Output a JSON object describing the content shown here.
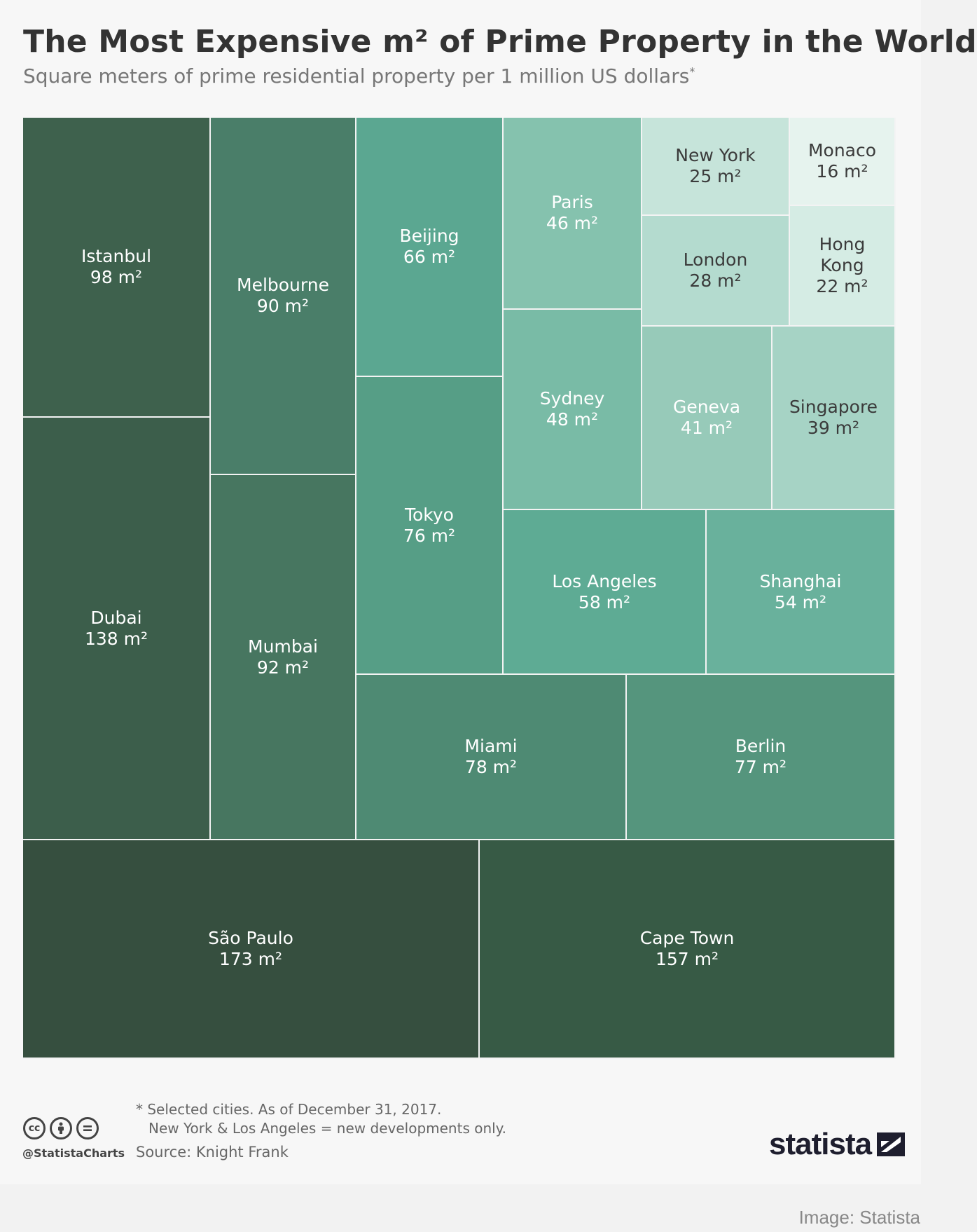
{
  "title": "The Most Expensive m² of Prime Property in the World",
  "subtitle": "Square meters of prime residential property per 1 million US dollars",
  "subtitle_marker": "*",
  "chart_data": {
    "type": "treemap",
    "unit": "m²",
    "items": [
      {
        "name": "São Paulo",
        "value": 173,
        "label": "173 m²",
        "color": "#364f3f",
        "text": "#ffffff"
      },
      {
        "name": "Cape Town",
        "value": 157,
        "label": "157 m²",
        "color": "#375a45",
        "text": "#ffffff"
      },
      {
        "name": "Dubai",
        "value": 138,
        "label": "138 m²",
        "color": "#3c5e4b",
        "text": "#ffffff"
      },
      {
        "name": "Istanbul",
        "value": 98,
        "label": "98 m²",
        "color": "#3e614d",
        "text": "#ffffff"
      },
      {
        "name": "Mumbai",
        "value": 92,
        "label": "92 m²",
        "color": "#477660",
        "text": "#ffffff"
      },
      {
        "name": "Melbourne",
        "value": 90,
        "label": "90 m²",
        "color": "#4a7e69",
        "text": "#ffffff"
      },
      {
        "name": "Miami",
        "value": 78,
        "label": "78 m²",
        "color": "#4e8a73",
        "text": "#ffffff"
      },
      {
        "name": "Berlin",
        "value": 77,
        "label": "77 m²",
        "color": "#55957d",
        "text": "#ffffff"
      },
      {
        "name": "Tokyo",
        "value": 76,
        "label": "76 m²",
        "color": "#569e86",
        "text": "#ffffff"
      },
      {
        "name": "Beijing",
        "value": 66,
        "label": "66 m²",
        "color": "#5ba791",
        "text": "#ffffff"
      },
      {
        "name": "Los Angeles",
        "value": 58,
        "label": "58 m²",
        "color": "#5eab94",
        "text": "#ffffff"
      },
      {
        "name": "Shanghai",
        "value": 54,
        "label": "54 m²",
        "color": "#69b19c",
        "text": "#ffffff"
      },
      {
        "name": "Sydney",
        "value": 48,
        "label": "48 m²",
        "color": "#79bba6",
        "text": "#ffffff"
      },
      {
        "name": "Paris",
        "value": 46,
        "label": "46 m²",
        "color": "#85c2ae",
        "text": "#ffffff"
      },
      {
        "name": "Geneva",
        "value": 41,
        "label": "41 m²",
        "color": "#97cab9",
        "text": "#ffffff"
      },
      {
        "name": "Singapore",
        "value": 39,
        "label": "39 m²",
        "color": "#a6d3c5",
        "text": "#3b3b3b"
      },
      {
        "name": "London",
        "value": 28,
        "label": "28 m²",
        "color": "#b4dbcf",
        "text": "#3b3b3b"
      },
      {
        "name": "New York",
        "value": 25,
        "label": "25 m²",
        "color": "#c6e4da",
        "text": "#3b3b3b"
      },
      {
        "name": "Hong Kong",
        "value": 22,
        "label": "22 m²",
        "color": "#d5ece4",
        "text": "#3b3b3b"
      },
      {
        "name": "Monaco",
        "value": 16,
        "label": "16 m²",
        "color": "#e6f3ee",
        "text": "#3b3b3b"
      }
    ]
  },
  "footer": {
    "note_line1": "* Selected cities. As of December 31, 2017.",
    "note_line2": "New York & Los Angeles = new developments only.",
    "source": "Source: Knight Frank",
    "handle": "@StatistaCharts",
    "license_icons": [
      "cc-icon",
      "attribution-icon",
      "no-derivatives-icon"
    ],
    "brand": "statista"
  },
  "credit": "Image: Statista"
}
